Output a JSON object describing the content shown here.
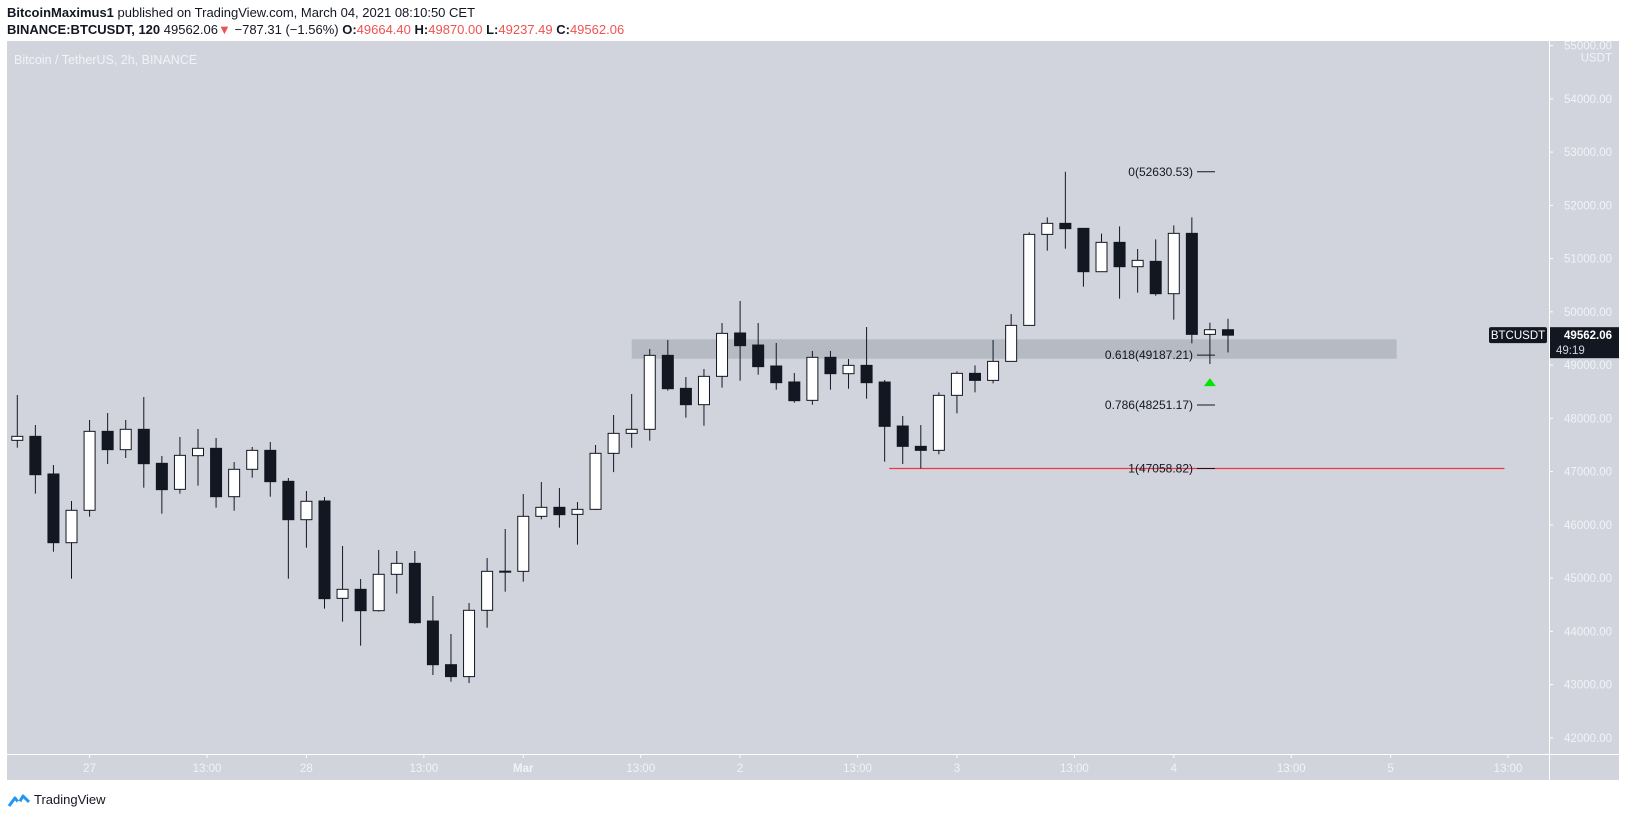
{
  "header": {
    "author": "BitcoinMaximus1",
    "published": "published on TradingView.com, March 04, 2021 08:10:50 CET",
    "symbol": "BINANCE:BTCUSDT, 120",
    "last": "49562.06",
    "change": "−787.31 (−1.56%)",
    "o_label": "O:",
    "o": "49664.40",
    "h_label": "H:",
    "h": "49870.00",
    "l_label": "L:",
    "l": "49237.49",
    "c_label": "C:",
    "c": "49562.06",
    "down_icon": "triangle-down-icon"
  },
  "footer": {
    "brand": "TradingView",
    "logo_icon": "tradingview-logo-icon"
  },
  "colors": {
    "background": "#d1d4dc",
    "up_body": "#ffffff",
    "down_body": "#131722",
    "wick": "#131722",
    "accent_red": "#ef5350",
    "support_line": "#f23645",
    "arrow": "#00e600",
    "zone": "#b2b5be"
  },
  "chart_data": {
    "type": "candlestick",
    "title": "Bitcoin / TetherUS, 2h, BINANCE",
    "start": "2021-02-26T16:00Z",
    "interval_hours": 2,
    "ohlc_fields": [
      "open",
      "high",
      "low",
      "close"
    ],
    "candles": [
      [
        47587,
        48438,
        47449,
        47662
      ],
      [
        47662,
        47875,
        46586,
        46942
      ],
      [
        46955,
        47124,
        45496,
        45665
      ],
      [
        45665,
        46448,
        44989,
        46273
      ],
      [
        46273,
        47969,
        46154,
        47756
      ],
      [
        47756,
        48100,
        47143,
        47412
      ],
      [
        47412,
        47969,
        47255,
        47794
      ],
      [
        47794,
        48401,
        46698,
        47149
      ],
      [
        47155,
        47293,
        46210,
        46661
      ],
      [
        46667,
        47650,
        46586,
        47305
      ],
      [
        47299,
        47800,
        46736,
        47437
      ],
      [
        47437,
        47631,
        46323,
        46529
      ],
      [
        46529,
        47180,
        46266,
        47043
      ],
      [
        47043,
        47462,
        46886,
        47399
      ],
      [
        47399,
        47556,
        46529,
        46811
      ],
      [
        46817,
        46880,
        44989,
        46097
      ],
      [
        46097,
        46636,
        45571,
        46442
      ],
      [
        46448,
        46523,
        44426,
        44614
      ],
      [
        44620,
        45603,
        44182,
        44789
      ],
      [
        44789,
        44983,
        43731,
        44388
      ],
      [
        44388,
        45528,
        44370,
        45071
      ],
      [
        45071,
        45509,
        44708,
        45277
      ],
      [
        45277,
        45509,
        44144,
        44163
      ],
      [
        44194,
        44664,
        43180,
        43374
      ],
      [
        43374,
        43950,
        43054,
        43150
      ],
      [
        43150,
        44532,
        43030,
        44395
      ],
      [
        44395,
        45377,
        44069,
        45127
      ],
      [
        45127,
        45922,
        44745,
        45130
      ],
      [
        45127,
        46579,
        44933,
        46160
      ],
      [
        46160,
        46805,
        46104,
        46329
      ],
      [
        46329,
        46692,
        45947,
        46191
      ],
      [
        46197,
        46429,
        45628,
        46291
      ],
      [
        46291,
        47500,
        46280,
        47343
      ],
      [
        47343,
        48063,
        46990,
        47718
      ],
      [
        47718,
        48457,
        47449,
        47794
      ],
      [
        47794,
        49302,
        47581,
        49183
      ],
      [
        49183,
        49471,
        48520,
        48557
      ],
      [
        48563,
        48776,
        48013,
        48257
      ],
      [
        48257,
        48927,
        47862,
        48789
      ],
      [
        48789,
        49790,
        48576,
        49596
      ],
      [
        49603,
        50204,
        48707,
        49365
      ],
      [
        49377,
        49790,
        48820,
        48971
      ],
      [
        48983,
        49415,
        48538,
        48670
      ],
      [
        48683,
        48851,
        48294,
        48332
      ],
      [
        48338,
        49265,
        48257,
        49146
      ],
      [
        49146,
        49265,
        48538,
        48839
      ],
      [
        48839,
        49114,
        48557,
        48995
      ],
      [
        48995,
        49715,
        48369,
        48670
      ],
      [
        48682,
        48720,
        47186,
        47850
      ],
      [
        47856,
        48043,
        47142,
        47474
      ],
      [
        47474,
        47874,
        47058.82,
        47399
      ],
      [
        47399,
        48488,
        47324,
        48432
      ],
      [
        48432,
        48882,
        48094,
        48845
      ],
      [
        48845,
        48995,
        48488,
        48713
      ],
      [
        48713,
        49471,
        48657,
        49070
      ],
      [
        49070,
        49959,
        49070,
        49746
      ],
      [
        49746,
        51493,
        49746,
        51455
      ],
      [
        51455,
        51774,
        51149,
        51662
      ],
      [
        51662,
        52630.53,
        51186,
        51562
      ],
      [
        51568,
        51568,
        50472,
        50754
      ],
      [
        50754,
        51468,
        50754,
        51305
      ],
      [
        51305,
        51605,
        50247,
        50848
      ],
      [
        50848,
        51180,
        50360,
        50967
      ],
      [
        50948,
        51361,
        50303,
        50341
      ],
      [
        50341,
        51624,
        49853,
        51474
      ],
      [
        51474,
        51774,
        49408,
        49577
      ],
      [
        49577,
        49797,
        49020,
        49664.4
      ],
      [
        49664.4,
        49870.0,
        49237.49,
        49562.06
      ]
    ],
    "y_range": [
      42000,
      55000
    ],
    "y_unit": "USDT",
    "y_ticks": [
      "55000.00",
      "54000.00",
      "53000.00",
      "52000.00",
      "51000.00",
      "50000.00",
      "49000.00",
      "48000.00",
      "47000.00",
      "46000.00",
      "45000.00",
      "44000.00",
      "43000.00",
      "42000.00"
    ],
    "x_ticks": [
      {
        "label": "27",
        "t": "2021-02-27T00:00Z"
      },
      {
        "label": "13:00",
        "t": "2021-02-27T13:00Z"
      },
      {
        "label": "28",
        "t": "2021-02-28T00:00Z"
      },
      {
        "label": "13:00",
        "t": "2021-02-28T13:00Z"
      },
      {
        "label": "Mar",
        "t": "2021-03-01T00:00Z"
      },
      {
        "label": "13:00",
        "t": "2021-03-01T13:00Z"
      },
      {
        "label": "2",
        "t": "2021-03-02T00:00Z"
      },
      {
        "label": "13:00",
        "t": "2021-03-02T13:00Z"
      },
      {
        "label": "3",
        "t": "2021-03-03T00:00Z"
      },
      {
        "label": "13:00",
        "t": "2021-03-03T13:00Z"
      },
      {
        "label": "4",
        "t": "2021-03-04T00:00Z"
      },
      {
        "label": "13:00",
        "t": "2021-03-04T13:00Z"
      },
      {
        "label": "5",
        "t": "2021-03-05T00:00Z"
      },
      {
        "label": "13:00",
        "t": "2021-03-05T13:00Z"
      }
    ],
    "fib_levels": [
      {
        "label": "0(52630.53)",
        "price": 52630.53
      },
      {
        "label": "0.618(49187.21)",
        "price": 49187.21
      },
      {
        "label": "0.786(48251.17)",
        "price": 48251.17
      },
      {
        "label": "1(47058.82)",
        "price": 47058.82
      }
    ],
    "zone": {
      "low": 49120,
      "high": 49484,
      "from": "2021-03-01T12:00Z",
      "to": "2021-03-05T00:40Z"
    },
    "support_line": {
      "price": 47058.82,
      "from": "2021-03-02T16:30Z",
      "to": "2021-03-05T12:36Z"
    },
    "arrow": {
      "direction": "up",
      "t": "2021-03-04T04:00Z",
      "price": 48680
    },
    "last_price": {
      "symbol": "BTCUSDT",
      "value": "49562.06",
      "countdown": "49:19"
    },
    "grid": false
  }
}
